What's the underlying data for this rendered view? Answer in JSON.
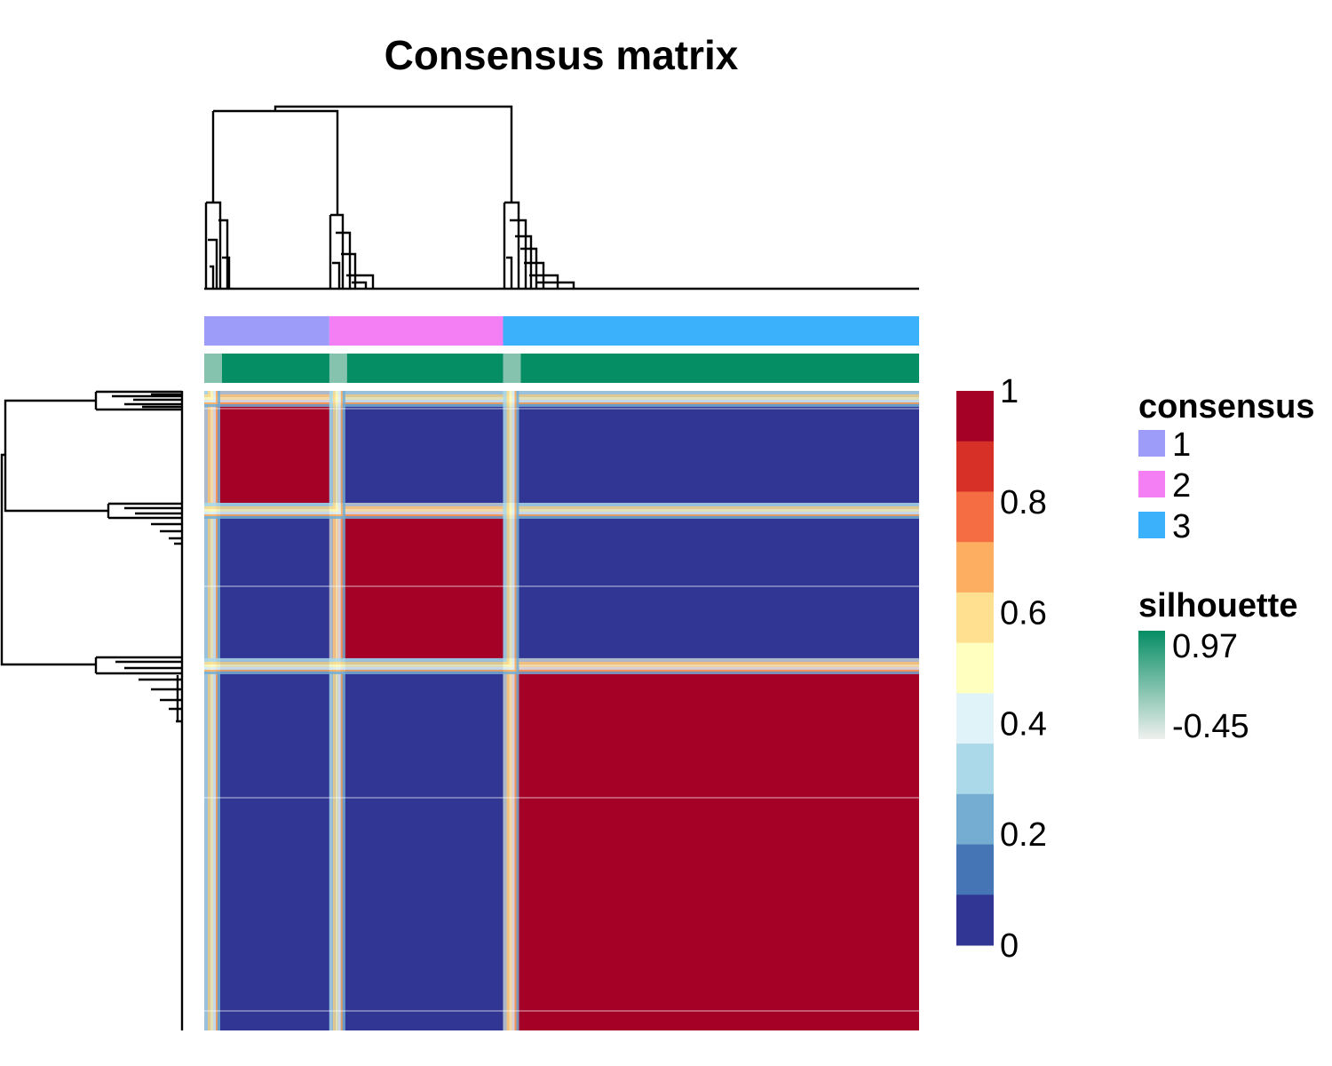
{
  "chart_data": {
    "type": "heatmap",
    "title": "Consensus matrix",
    "clusters": [
      {
        "label": "1",
        "fraction": 0.175
      },
      {
        "label": "2",
        "fraction": 0.243
      },
      {
        "label": "3",
        "fraction": 0.582
      }
    ],
    "cell_values": {
      "within_cluster": 1.0,
      "between_cluster": 0.0
    },
    "color_scale": {
      "min": 0,
      "max": 1,
      "ticks": [
        "1",
        "0.8",
        "0.6",
        "0.4",
        "0.2",
        "0"
      ],
      "colors": [
        "#313695",
        "#4575b4",
        "#74add1",
        "#abd9e9",
        "#e0f3f8",
        "#ffffbf",
        "#fee090",
        "#fdae61",
        "#f46d43",
        "#d73027",
        "#a50026"
      ]
    },
    "annotations": {
      "consensus": {
        "title": "consensus",
        "items": [
          {
            "label": "1",
            "color": "#9e9cf9"
          },
          {
            "label": "2",
            "color": "#f47ef4"
          },
          {
            "label": "3",
            "color": "#3bb1fc"
          }
        ]
      },
      "silhouette": {
        "title": "silhouette",
        "max_label": "0.97",
        "min_label": "-0.45",
        "color_high": "#058d63",
        "color_low": "#eef0ee"
      }
    }
  }
}
